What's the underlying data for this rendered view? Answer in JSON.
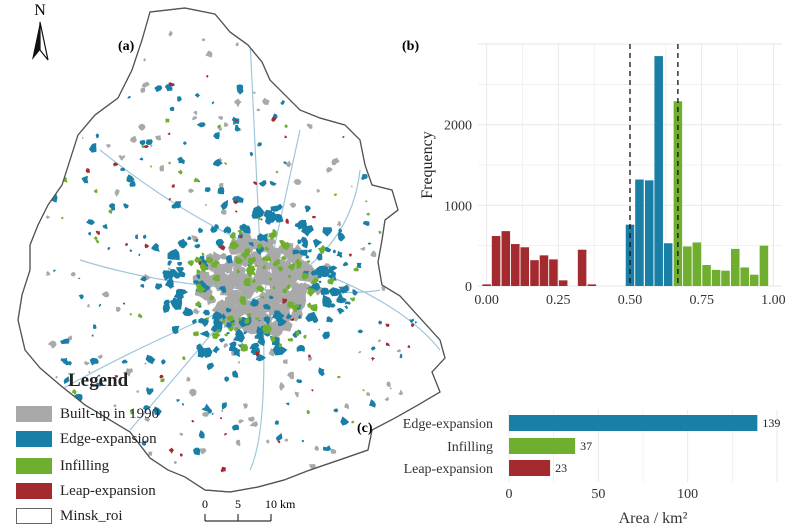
{
  "panels": {
    "a": "(a)",
    "b": "(b)",
    "c": "(c)"
  },
  "north_label": "N",
  "legend": {
    "title": "Legend",
    "items": [
      {
        "label": "Built-up in 1990",
        "color": "#a9a9a9"
      },
      {
        "label": "Edge-expansion",
        "color": "#1a7fa6"
      },
      {
        "label": "Infilling",
        "color": "#6fae2e"
      },
      {
        "label": "Leap-expansion",
        "color": "#a32a2f"
      },
      {
        "label": "Minsk_roi",
        "color": "#ffffff"
      }
    ]
  },
  "scalebar": {
    "ticks": [
      "0",
      "5",
      "10 km"
    ]
  },
  "colors": {
    "built": "#a9a9a9",
    "edge": "#1a7fa6",
    "infill": "#6fae2e",
    "leap": "#a32a2f",
    "boundary": "#555555",
    "road": "#9fc7dc"
  },
  "chart_data": [
    {
      "type": "bar",
      "panel": "b",
      "xlabel": "",
      "ylabel": "Frequency",
      "xlim": [
        -0.03,
        1.03
      ],
      "ylim": [
        0,
        3000
      ],
      "xticks": [
        "0.00",
        "0.25",
        "0.50",
        "0.75",
        "1.00"
      ],
      "yticks": [
        "0",
        "1000",
        "2000"
      ],
      "thresholds": [
        0.5,
        0.667
      ],
      "bin_width": 0.0333,
      "series": [
        {
          "class": "leap",
          "x": [
            0.0,
            0.033,
            0.067,
            0.1,
            0.133,
            0.167,
            0.2,
            0.233,
            0.267,
            0.3,
            0.333,
            0.367
          ],
          "values": [
            20,
            620,
            680,
            520,
            480,
            320,
            380,
            330,
            70,
            0,
            450,
            20
          ]
        },
        {
          "class": "edge",
          "x": [
            0.5,
            0.533,
            0.567,
            0.6,
            0.633
          ],
          "values": [
            760,
            1320,
            1310,
            2850,
            530
          ]
        },
        {
          "class": "infill",
          "x": [
            0.667,
            0.7,
            0.733,
            0.767,
            0.8,
            0.833,
            0.867,
            0.9,
            0.933,
            0.967
          ],
          "values": [
            2290,
            490,
            540,
            260,
            200,
            190,
            460,
            230,
            140,
            500
          ]
        }
      ]
    },
    {
      "type": "bar",
      "panel": "c",
      "orientation": "horizontal",
      "xlabel": "Area / km²",
      "xlim": [
        0,
        150
      ],
      "xticks": [
        "0",
        "50",
        "100"
      ],
      "categories": [
        "Edge-expansion",
        "Infilling",
        "Leap-expansion"
      ],
      "values": [
        139,
        37,
        23
      ],
      "data_labels": [
        "139",
        "37",
        "23"
      ]
    }
  ]
}
